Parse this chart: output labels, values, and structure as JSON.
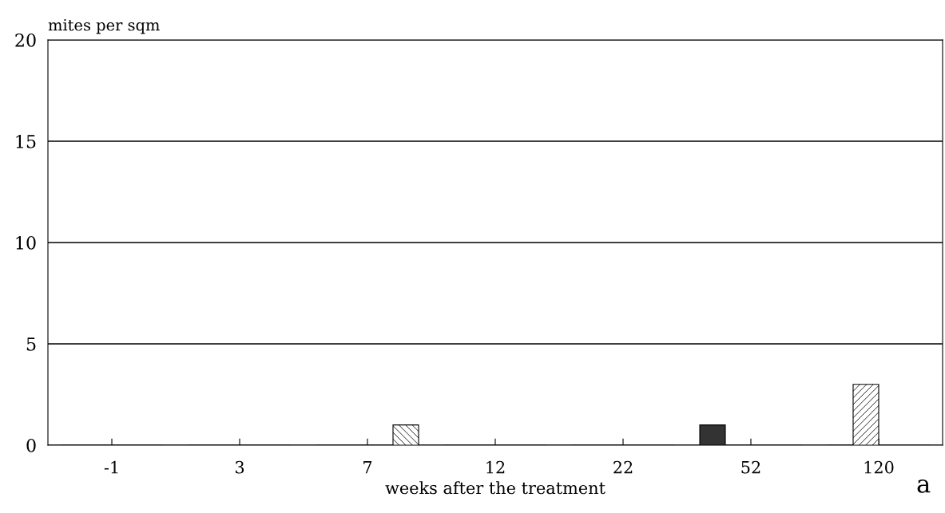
{
  "chart_data": {
    "type": "bar",
    "ylabel": "mites per sqm",
    "xlabel": "weeks after the treatment",
    "categories": [
      "-1",
      "3",
      "7",
      "12",
      "22",
      "52",
      "120"
    ],
    "series": [
      {
        "color": "#333333",
        "values": [
          0,
          0,
          0,
          0,
          0,
          1,
          0
        ]
      },
      {
        "color": "#000000",
        "values": [
          0,
          0,
          0,
          0,
          0,
          0,
          3
        ]
      },
      {
        "color": "#ffffff",
        "values": [
          0,
          0,
          0,
          0,
          0,
          0,
          0
        ]
      },
      {
        "color": "#000000",
        "values": [
          0,
          0,
          1,
          0,
          0,
          0,
          0
        ]
      }
    ],
    "ylim": [
      0,
      20
    ],
    "yticks": [
      0,
      5,
      10,
      15,
      20
    ],
    "grid": "y",
    "annotations": [
      "a"
    ]
  }
}
